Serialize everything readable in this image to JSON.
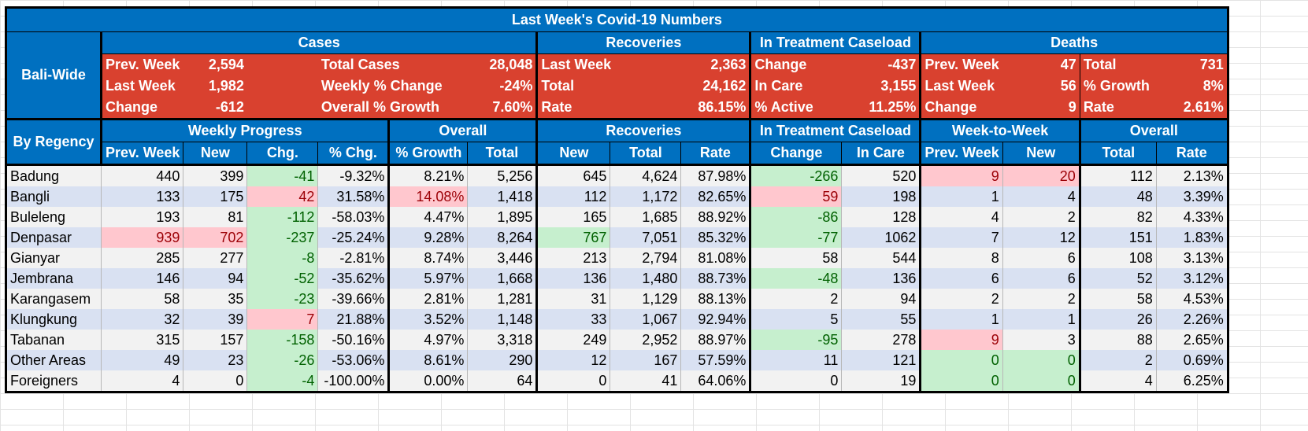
{
  "title": "Last Week's Covid-19 Numbers",
  "bali": {
    "side_label": "Bali-Wide",
    "headers": {
      "cases": "Cases",
      "recoveries": "Recoveries",
      "treatment": "In Treatment Caseload",
      "deaths": "Deaths"
    },
    "rows": [
      {
        "c1l": "Prev. Week",
        "c1v": "2,594",
        "c2l": "Total Cases",
        "c2v": "28,048",
        "rl": "Last Week",
        "rv": "2,363",
        "tl": "Change",
        "tv": "-437",
        "d1l": "Prev. Week",
        "d1v": "47",
        "d2l": "Total",
        "d2v": "731"
      },
      {
        "c1l": "Last Week",
        "c1v": "1,982",
        "c2l": "Weekly % Change",
        "c2v": "-24%",
        "rl": "Total",
        "rv": "24,162",
        "tl": "In Care",
        "tv": "3,155",
        "d1l": "Last Week",
        "d1v": "56",
        "d2l": "% Growth",
        "d2v": "8%"
      },
      {
        "c1l": "Change",
        "c1v": "-612",
        "c2l": "Overall % Growth",
        "c2v": "7.60%",
        "rl": "Rate",
        "rv": "86.15%",
        "tl": "% Active",
        "tv": "11.25%",
        "d1l": "Change",
        "d1v": "9",
        "d2l": "Rate",
        "d2v": "2.61%"
      }
    ]
  },
  "regency": {
    "side_label": "By Regency",
    "groups": {
      "weekly": "Weekly Progress",
      "overall": "Overall",
      "recoveries": "Recoveries",
      "treatment": "In Treatment Caseload",
      "wtw": "Week-to-Week",
      "overall2": "Overall"
    },
    "columns": [
      "Prev. Week",
      "New",
      "Chg.",
      "% Chg.",
      "% Growth",
      "Total",
      "New",
      "Total",
      "Rate",
      "Change",
      "In Care",
      "Prev. Week",
      "New",
      "Total",
      "Rate"
    ],
    "rows": [
      {
        "name": "Badung",
        "v": [
          "440",
          "399",
          "-41",
          "-9.32%",
          "8.21%",
          "5,256",
          "645",
          "4,624",
          "87.98%",
          "-266",
          "520",
          "9",
          "20",
          "112",
          "2.13%"
        ],
        "hl": {
          "2": "g",
          "9": "g",
          "11": "p",
          "12": "p"
        }
      },
      {
        "name": "Bangli",
        "v": [
          "133",
          "175",
          "42",
          "31.58%",
          "14.08%",
          "1,418",
          "112",
          "1,172",
          "82.65%",
          "59",
          "198",
          "1",
          "4",
          "48",
          "3.39%"
        ],
        "hl": {
          "2": "p",
          "4": "p",
          "9": "p"
        }
      },
      {
        "name": "Buleleng",
        "v": [
          "193",
          "81",
          "-112",
          "-58.03%",
          "4.47%",
          "1,895",
          "165",
          "1,685",
          "88.92%",
          "-86",
          "128",
          "4",
          "2",
          "82",
          "4.33%"
        ],
        "hl": {
          "2": "g",
          "9": "g"
        }
      },
      {
        "name": "Denpasar",
        "v": [
          "939",
          "702",
          "-237",
          "-25.24%",
          "9.28%",
          "8,264",
          "767",
          "7,051",
          "85.32%",
          "-77",
          "1062",
          "7",
          "12",
          "151",
          "1.83%"
        ],
        "hl": {
          "0": "p",
          "1": "p",
          "2": "g",
          "6": "g",
          "9": "g"
        }
      },
      {
        "name": "Gianyar",
        "v": [
          "285",
          "277",
          "-8",
          "-2.81%",
          "8.74%",
          "3,446",
          "213",
          "2,794",
          "81.08%",
          "58",
          "544",
          "8",
          "6",
          "108",
          "3.13%"
        ],
        "hl": {
          "2": "g"
        }
      },
      {
        "name": "Jembrana",
        "v": [
          "146",
          "94",
          "-52",
          "-35.62%",
          "5.97%",
          "1,668",
          "136",
          "1,480",
          "88.73%",
          "-48",
          "136",
          "6",
          "6",
          "52",
          "3.12%"
        ],
        "hl": {
          "2": "g",
          "9": "g"
        }
      },
      {
        "name": "Karangasem",
        "v": [
          "58",
          "35",
          "-23",
          "-39.66%",
          "2.81%",
          "1,281",
          "31",
          "1,129",
          "88.13%",
          "2",
          "94",
          "2",
          "2",
          "58",
          "4.53%"
        ],
        "hl": {
          "2": "g"
        }
      },
      {
        "name": "Klungkung",
        "v": [
          "32",
          "39",
          "7",
          "21.88%",
          "3.52%",
          "1,148",
          "33",
          "1,067",
          "92.94%",
          "5",
          "55",
          "1",
          "1",
          "26",
          "2.26%"
        ],
        "hl": {
          "2": "p"
        }
      },
      {
        "name": "Tabanan",
        "v": [
          "315",
          "157",
          "-158",
          "-50.16%",
          "4.97%",
          "3,318",
          "249",
          "2,952",
          "88.97%",
          "-95",
          "278",
          "9",
          "3",
          "88",
          "2.65%"
        ],
        "hl": {
          "2": "g",
          "9": "g",
          "11": "p"
        }
      },
      {
        "name": "Other Areas",
        "v": [
          "49",
          "23",
          "-26",
          "-53.06%",
          "8.61%",
          "290",
          "12",
          "167",
          "57.59%",
          "11",
          "121",
          "0",
          "0",
          "2",
          "0.69%"
        ],
        "hl": {
          "2": "g",
          "11": "g",
          "12": "g"
        }
      },
      {
        "name": "Foreigners",
        "v": [
          "4",
          "0",
          "-4",
          "-100.00%",
          "0.00%",
          "64",
          "0",
          "41",
          "64.06%",
          "0",
          "19",
          "0",
          "0",
          "4",
          "6.25%"
        ],
        "hl": {
          "2": "g",
          "11": "g",
          "12": "g"
        }
      }
    ]
  }
}
